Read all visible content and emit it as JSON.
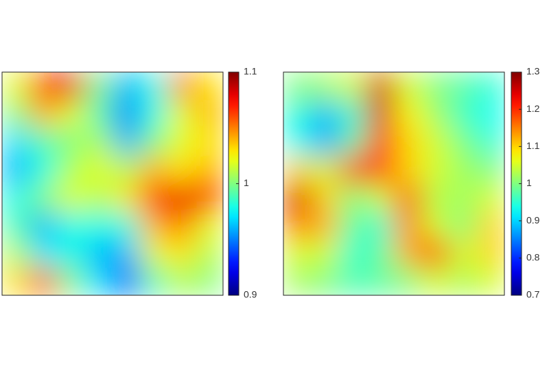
{
  "chart_data": [
    {
      "type": "heatmap",
      "values": [
        [
          1.02,
          1.07,
          1.08,
          1.0,
          0.96,
          0.98,
          1.05,
          1.03
        ],
        [
          1.0,
          1.04,
          1.02,
          0.99,
          0.95,
          0.98,
          1.02,
          1.04
        ],
        [
          0.97,
          0.99,
          1.0,
          1.01,
          0.96,
          1.0,
          1.02,
          1.03
        ],
        [
          0.96,
          0.98,
          1.01,
          1.02,
          1.01,
          1.04,
          1.03,
          1.04
        ],
        [
          0.98,
          1.0,
          1.02,
          1.01,
          1.03,
          1.07,
          1.08,
          1.07
        ],
        [
          0.99,
          0.96,
          0.98,
          0.98,
          0.98,
          1.04,
          1.05,
          1.02
        ],
        [
          1.01,
          0.97,
          0.98,
          0.96,
          0.96,
          1.02,
          1.03,
          1.01
        ],
        [
          1.03,
          1.06,
          1.0,
          0.97,
          0.94,
          0.99,
          1.01,
          1.0
        ]
      ],
      "clim": [
        0.9,
        1.1
      ],
      "cticks": [
        0.9,
        1,
        1.1
      ],
      "colormap": "jet"
    },
    {
      "type": "heatmap",
      "values": [
        [
          1.0,
          1.02,
          1.05,
          1.25,
          1.05,
          1.0,
          0.98,
          0.95
        ],
        [
          0.95,
          0.88,
          0.95,
          1.25,
          1.08,
          1.02,
          0.96,
          0.93
        ],
        [
          0.93,
          0.87,
          0.98,
          1.2,
          1.1,
          1.05,
          1.0,
          0.95
        ],
        [
          1.1,
          1.05,
          1.2,
          1.22,
          1.1,
          1.05,
          1.02,
          1.0
        ],
        [
          1.25,
          1.1,
          1.0,
          1.05,
          1.18,
          1.03,
          1.02,
          1.05
        ],
        [
          1.15,
          1.12,
          0.98,
          0.95,
          1.15,
          1.05,
          1.0,
          1.1
        ],
        [
          1.05,
          1.05,
          0.95,
          0.98,
          1.12,
          1.2,
          1.05,
          1.1
        ],
        [
          1.02,
          1.0,
          0.97,
          0.98,
          1.0,
          1.05,
          1.02,
          1.05
        ]
      ],
      "clim": [
        0.7,
        1.3
      ],
      "cticks": [
        0.7,
        0.8,
        0.9,
        1,
        1.1,
        1.2,
        1.3
      ],
      "colormap": "jet"
    }
  ]
}
